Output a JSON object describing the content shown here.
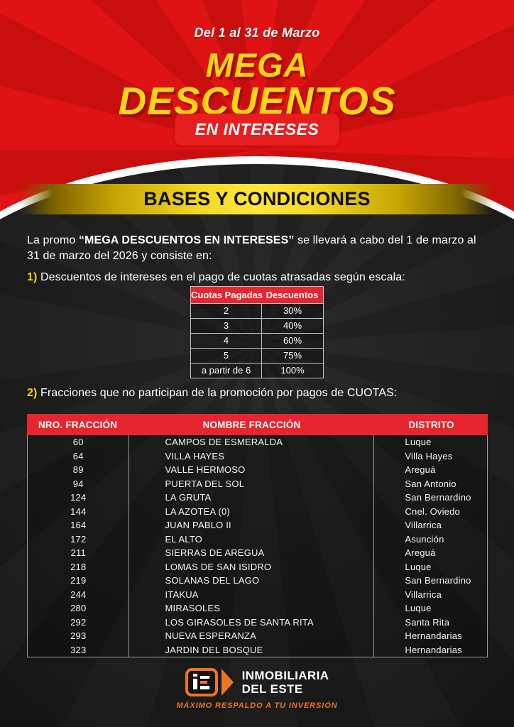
{
  "hero": {
    "date_range": "Del 1 al 31 de Marzo",
    "title_line1": "MEGA",
    "title_line2": "DESCUENTOS",
    "badge": "EN INTERESES"
  },
  "banner": {
    "label": "BASES Y CONDICIONES"
  },
  "intro": {
    "lead_prefix": "La promo ",
    "promo_name": "“MEGA DESCUENTOS EN INTERESES”",
    "lead_suffix": " se llevará a cabo del 1 de marzo al 31 de marzo del 2026 y consiste en:",
    "item1_marker": "1)",
    "item1_text": " Descuentos de intereses en el pago de cuotas atrasadas según escala:"
  },
  "discount_table": {
    "headers": [
      "Cuotas Pagadas",
      "Descuentos"
    ],
    "rows": [
      [
        "2",
        "30%"
      ],
      [
        "3",
        "40%"
      ],
      [
        "4",
        "60%"
      ],
      [
        "5",
        "75%"
      ],
      [
        "a partir de 6",
        "100%"
      ]
    ]
  },
  "section2": {
    "marker": "2)",
    "text": " Fracciones que no participan de la promoción por pagos de CUOTAS:"
  },
  "fractions_table": {
    "headers": [
      "NRO. FRACCIÓN",
      "NOMBRE FRACCIÓN",
      "DISTRITO"
    ],
    "rows": [
      [
        "60",
        "CAMPOS DE ESMERALDA",
        "Luque"
      ],
      [
        "64",
        "VILLA HAYES",
        "Villa Hayes"
      ],
      [
        "89",
        "VALLE HERMOSO",
        "Areguá"
      ],
      [
        "94",
        "PUERTA DEL SOL",
        "San Antonio"
      ],
      [
        "124",
        "LA GRUTA",
        "San Bernardino"
      ],
      [
        "144",
        "LA AZOTEA (0)",
        "Cnel. Oviedo"
      ],
      [
        "164",
        "JUAN PABLO II",
        "Villarrica"
      ],
      [
        "172",
        "EL ALTO",
        "Asunción"
      ],
      [
        "211",
        "SIERRAS DE AREGUA",
        "Areguá"
      ],
      [
        "218",
        "LOMAS DE SAN ISIDRO",
        "Luque"
      ],
      [
        "219",
        "SOLANAS DEL LAGO",
        "San Bernardino"
      ],
      [
        "244",
        "ITAKUA",
        "Villarrica"
      ],
      [
        "280",
        "MIRASOLES",
        "Luque"
      ],
      [
        "292",
        "LOS GIRASOLES DE SANTA RITA",
        "Santa Rita"
      ],
      [
        "293",
        "NUEVA ESPERANZA",
        "Hernandarias"
      ],
      [
        "323",
        "JARDIN DEL BOSQUE",
        "Hernandarias"
      ]
    ]
  },
  "footer": {
    "brand_line1": "INMOBILIARIA",
    "brand_line2": "DEL ESTE",
    "tagline": "MÁXIMO RESPALDO A TU INVERSIÓN"
  },
  "colors": {
    "hero_red": "#d51010",
    "hero_ray_red": "#c90e0e",
    "title_yellow": "#ffd516",
    "badge_red": "#e81e1e",
    "banner_gold": "#ffe63e",
    "body_dark": "#1d1d1d",
    "table_header_red": "#e6252e",
    "logo_orange": "#ed7524"
  }
}
